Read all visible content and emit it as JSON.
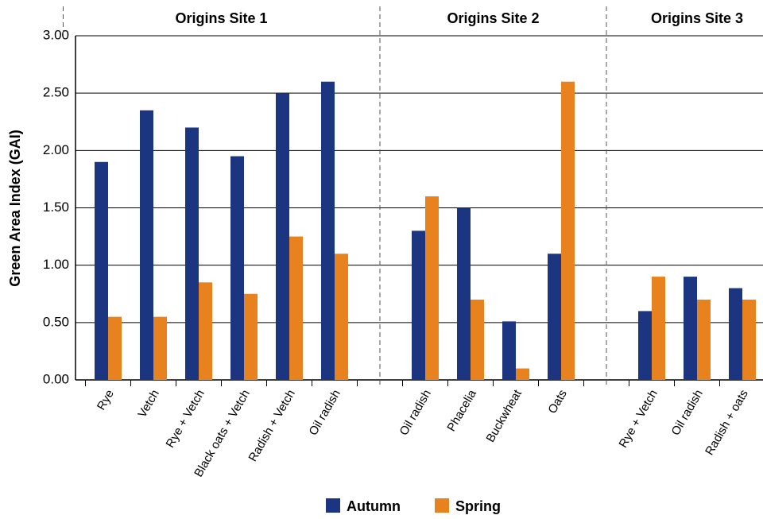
{
  "chart_data": {
    "type": "bar",
    "y_axis_label": "Green Area Index (GAI)",
    "groups": [
      "Origins Site 1",
      "Origins Site 2",
      "Origins Site 3"
    ],
    "categories": [
      "Rye",
      "Vetch",
      "Rye + Vetch",
      "Black oats + Vetch",
      "Radish + Vetch",
      "Oil radish",
      null,
      "Oil radish",
      "Phacelia",
      "Buckwheat",
      "Oats",
      null,
      "Rye + Vetch",
      "Oil radish",
      "Radish + oats"
    ],
    "series": [
      {
        "name": "Autumn",
        "color": "#1c3580",
        "values": [
          1.9,
          2.35,
          2.2,
          1.95,
          2.5,
          2.6,
          null,
          1.3,
          1.5,
          0.51,
          1.1,
          null,
          0.6,
          0.9,
          0.8
        ]
      },
      {
        "name": "Spring",
        "color": "#e8821e",
        "values": [
          0.55,
          0.55,
          0.85,
          0.75,
          1.25,
          1.1,
          null,
          1.6,
          0.7,
          0.1,
          2.6,
          null,
          0.9,
          0.7,
          0.7
        ]
      }
    ],
    "ylim": [
      0,
      3
    ],
    "yticks": [
      {
        "value": 0,
        "label": "0.00"
      },
      {
        "value": 0.5,
        "label": "0.50"
      },
      {
        "value": 1,
        "label": "1.00"
      },
      {
        "value": 1.5,
        "label": "1.50"
      },
      {
        "value": 2,
        "label": "2.00"
      },
      {
        "value": 2.5,
        "label": "2.50"
      },
      {
        "value": 3,
        "label": "3.00"
      }
    ],
    "grid": true
  }
}
